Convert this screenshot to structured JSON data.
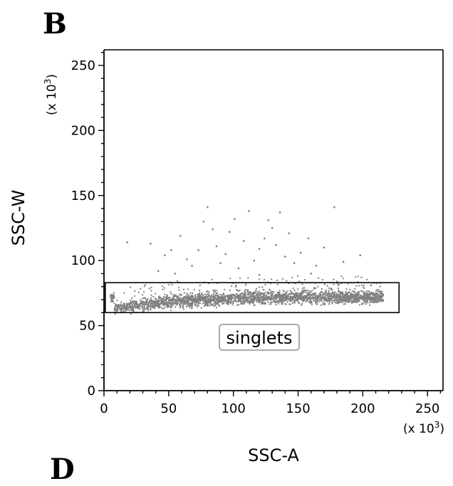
{
  "panel_label": "B",
  "next_panel_label": "D",
  "chart_data": {
    "type": "scatter",
    "xlabel": "SSC-A",
    "ylabel": "SSC-W",
    "x_multiplier": "(x 10",
    "y_multiplier": "(x 10",
    "multiplier_exponent": "3",
    "xlim": [
      0,
      262
    ],
    "ylim": [
      0,
      262
    ],
    "x_ticks": [
      0,
      50,
      100,
      150,
      200,
      250
    ],
    "y_ticks": [
      0,
      50,
      100,
      150,
      200,
      250
    ],
    "x_tick_labels": [
      "0",
      "50",
      "100",
      "150",
      "200",
      "250"
    ],
    "y_tick_labels": [
      "0",
      "50",
      "100",
      "150",
      "200",
      "250"
    ],
    "grid": false,
    "point_color": "#808080",
    "gate": {
      "label": "singlets",
      "x_range": [
        1,
        228
      ],
      "y_range": [
        60,
        83
      ]
    },
    "main_population": {
      "description_points": [
        {
          "x": 8,
          "y": 63
        },
        {
          "x": 30,
          "y": 66
        },
        {
          "x": 60,
          "y": 69
        },
        {
          "x": 100,
          "y": 71
        },
        {
          "x": 150,
          "y": 72
        },
        {
          "x": 200,
          "y": 72
        },
        {
          "x": 215,
          "y": 72
        }
      ],
      "x_range": [
        5,
        216
      ],
      "y_spread_half": 4.5
    },
    "outliers": [
      {
        "x": 18,
        "y": 114
      },
      {
        "x": 36,
        "y": 113
      },
      {
        "x": 47,
        "y": 104
      },
      {
        "x": 52,
        "y": 108
      },
      {
        "x": 59,
        "y": 119
      },
      {
        "x": 64,
        "y": 101
      },
      {
        "x": 68,
        "y": 96
      },
      {
        "x": 73,
        "y": 108
      },
      {
        "x": 77,
        "y": 130
      },
      {
        "x": 80,
        "y": 141
      },
      {
        "x": 84,
        "y": 124
      },
      {
        "x": 87,
        "y": 111
      },
      {
        "x": 90,
        "y": 98
      },
      {
        "x": 94,
        "y": 105
      },
      {
        "x": 97,
        "y": 122
      },
      {
        "x": 101,
        "y": 132
      },
      {
        "x": 104,
        "y": 94
      },
      {
        "x": 108,
        "y": 115
      },
      {
        "x": 112,
        "y": 138
      },
      {
        "x": 116,
        "y": 100
      },
      {
        "x": 120,
        "y": 109
      },
      {
        "x": 124,
        "y": 117
      },
      {
        "x": 127,
        "y": 131
      },
      {
        "x": 130,
        "y": 125
      },
      {
        "x": 133,
        "y": 112
      },
      {
        "x": 136,
        "y": 137
      },
      {
        "x": 140,
        "y": 103
      },
      {
        "x": 143,
        "y": 121
      },
      {
        "x": 147,
        "y": 98
      },
      {
        "x": 152,
        "y": 106
      },
      {
        "x": 158,
        "y": 117
      },
      {
        "x": 164,
        "y": 96
      },
      {
        "x": 170,
        "y": 110
      },
      {
        "x": 178,
        "y": 141
      },
      {
        "x": 185,
        "y": 99
      },
      {
        "x": 198,
        "y": 104
      },
      {
        "x": 42,
        "y": 92
      },
      {
        "x": 55,
        "y": 90
      },
      {
        "x": 120,
        "y": 89
      },
      {
        "x": 160,
        "y": 90
      }
    ]
  }
}
